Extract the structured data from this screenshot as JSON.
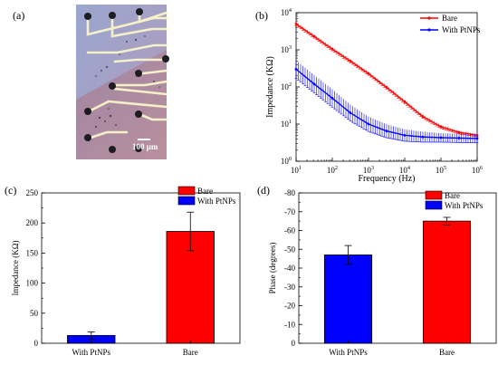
{
  "panel_labels": {
    "a": "(a)",
    "b": "(b)",
    "c": "(c)",
    "d": "(d)"
  },
  "micrograph": {
    "scale_bar_label": "100 μm"
  },
  "chart_data": [
    {
      "panel": "b",
      "type": "line",
      "xlabel": "Frequency (Hz)",
      "ylabel": "Impedance (KΩ)",
      "xscale": "log",
      "yscale": "log",
      "xlim": [
        10,
        1000000
      ],
      "ylim": [
        1,
        10000
      ],
      "x_ticks": [
        10,
        100,
        1000,
        10000,
        100000,
        1000000
      ],
      "x_tick_labels": [
        [
          "10",
          "1"
        ],
        [
          "10",
          "2"
        ],
        [
          "10",
          "3"
        ],
        [
          "10",
          "4"
        ],
        [
          "10",
          "5"
        ],
        [
          "10",
          "6"
        ]
      ],
      "y_ticks": [
        1,
        10,
        100,
        1000,
        10000
      ],
      "y_tick_labels": [
        [
          "10",
          "0"
        ],
        [
          "10",
          "1"
        ],
        [
          "10",
          "2"
        ],
        [
          "10",
          "3"
        ],
        [
          "10",
          "4"
        ]
      ],
      "legend_position": "top-right",
      "series": [
        {
          "name": "Bare",
          "color": "#ff0000",
          "x": [
            10,
            31.6,
            100,
            316,
            1000,
            3162,
            10000,
            31623,
            100000,
            316228,
            1000000
          ],
          "y": [
            5000,
            2300,
            1050,
            500,
            230,
            98,
            40,
            16,
            8.5,
            6,
            5
          ],
          "error": [
            0.12,
            0.12,
            0.12,
            0.12,
            0.12,
            0.12,
            0.12,
            0.12,
            0.12,
            0.1,
            0.1
          ]
        },
        {
          "name": "With PtNPs",
          "color": "#0000ff",
          "x": [
            10,
            31.6,
            100,
            316,
            1000,
            3162,
            10000,
            31623,
            100000,
            316228,
            1000000
          ],
          "y": [
            300,
            120,
            50,
            20,
            10,
            6.5,
            5,
            4.5,
            4.3,
            4.2,
            4.1
          ],
          "error": [
            0.6,
            0.6,
            0.6,
            0.55,
            0.5,
            0.45,
            0.4,
            0.35,
            0.3,
            0.3,
            0.3
          ]
        }
      ]
    },
    {
      "panel": "c",
      "type": "bar",
      "categories": [
        "With PtNPs",
        "Bare"
      ],
      "values": [
        13,
        186
      ],
      "errors": [
        6,
        32
      ],
      "colors": [
        "#0000ff",
        "#ff0000"
      ],
      "legend": [
        {
          "name": "Bare",
          "color": "#ff0000"
        },
        {
          "name": "With PtNPs",
          "color": "#0000ff"
        }
      ],
      "legend_position": "top-right",
      "ylabel": "Impedance (KΩ)",
      "ylim": [
        0,
        250
      ],
      "y_ticks": [
        0,
        50,
        100,
        150,
        200,
        250
      ]
    },
    {
      "panel": "d",
      "type": "bar",
      "categories": [
        "With PtNPs",
        "Bare"
      ],
      "values": [
        -47,
        -65
      ],
      "errors": [
        5,
        2
      ],
      "colors": [
        "#0000ff",
        "#ff0000"
      ],
      "legend": [
        {
          "name": "Bare",
          "color": "#ff0000"
        },
        {
          "name": "With PtNPs",
          "color": "#0000ff"
        }
      ],
      "legend_position": "top-right",
      "ylabel": "Phase (degrees)",
      "ylim": [
        0,
        -80
      ],
      "y_ticks": [
        0,
        -10,
        -20,
        -30,
        -40,
        -50,
        -60,
        -70,
        -80
      ],
      "y_tick_labels": [
        "0",
        "-10",
        "-20",
        "-30",
        "-40",
        "-50",
        "-60",
        "-70",
        "-80"
      ]
    }
  ]
}
